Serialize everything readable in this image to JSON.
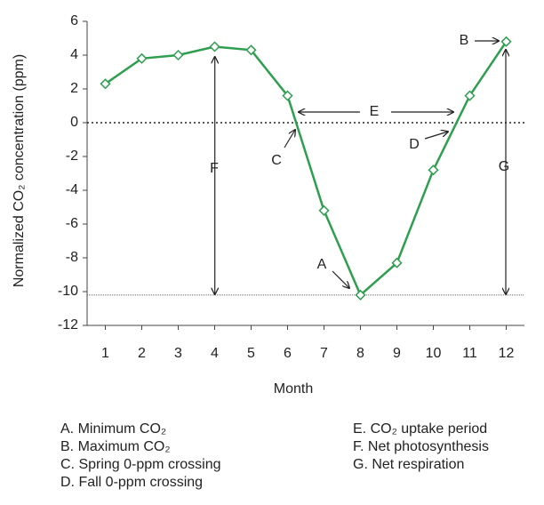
{
  "chart_data": {
    "type": "line",
    "y_label": "Normalized CO₂ concentration (ppm)",
    "x_label": "Month",
    "x": [
      1,
      2,
      3,
      4,
      5,
      6,
      7,
      8,
      9,
      10,
      11,
      12
    ],
    "series": [
      {
        "name": "CO₂",
        "color": "#2e9e4f",
        "values": [
          2.3,
          3.8,
          4.0,
          4.5,
          4.3,
          1.6,
          -5.2,
          -10.2,
          -8.3,
          -2.8,
          1.6,
          4.8
        ]
      }
    ],
    "xlim": [
      0.5,
      12.5
    ],
    "xticks": [
      1,
      2,
      3,
      4,
      5,
      6,
      7,
      8,
      9,
      10,
      11,
      12
    ],
    "ylim": [
      -12,
      6
    ],
    "yticks": [
      -12,
      -10,
      -8,
      -6,
      -4,
      -2,
      0,
      2,
      4,
      6
    ],
    "reference_lines": [
      0,
      -10.2
    ],
    "annotations": [
      "A",
      "B",
      "C",
      "D",
      "E",
      "F",
      "G"
    ],
    "notes": [
      "A. Minimum CO₂",
      "B. Maximum CO₂",
      "C. Spring 0-ppm crossing",
      "D. Fall 0-ppm crossing",
      "E. CO₂ uptake period",
      "F. Net photosynthesis",
      "G. Net respiration"
    ]
  }
}
